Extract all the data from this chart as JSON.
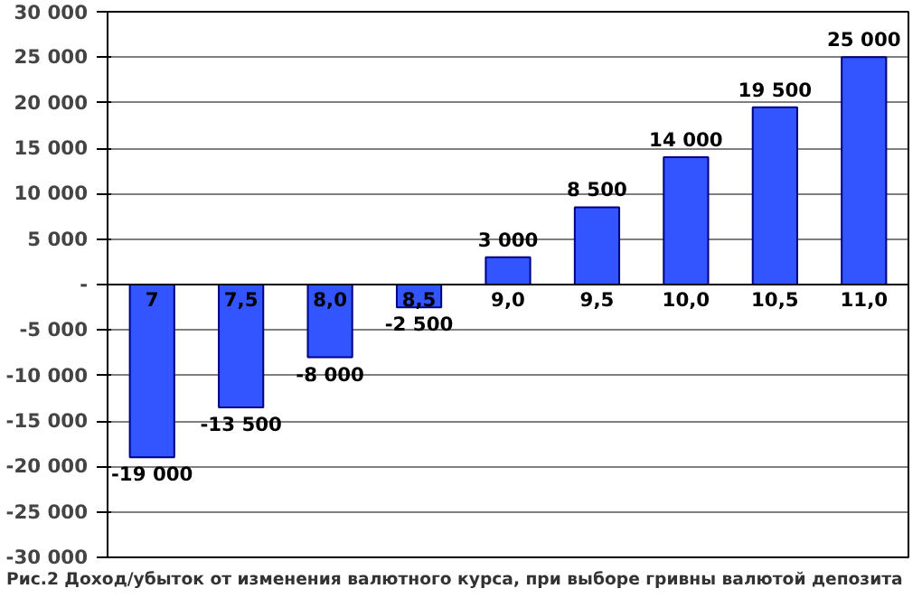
{
  "chart_data": {
    "type": "bar",
    "title": "Рис.2 Доход/убыток от изменения валютного курса, при выборе гривны валютой депозита",
    "categories": [
      "7",
      "7,5",
      "8,0",
      "8,5",
      "9,0",
      "9,5",
      "10,0",
      "10,5",
      "11,0"
    ],
    "values": [
      -19000,
      -13500,
      -8000,
      -2500,
      3000,
      8500,
      14000,
      19500,
      25000
    ],
    "value_labels": [
      "-19 000",
      "-13 500",
      "-8 000",
      "-2 500",
      "3 000",
      "8 500",
      "14 000",
      "19 500",
      "25 000"
    ],
    "color": "#3355ff",
    "ylim": [
      -30000,
      30000
    ],
    "yticks": [
      {
        "value": -30000,
        "label": "-30 000"
      },
      {
        "value": -25000,
        "label": "-25 000"
      },
      {
        "value": -20000,
        "label": "-20 000"
      },
      {
        "value": -15000,
        "label": "-15 000"
      },
      {
        "value": -10000,
        "label": "-10 000"
      },
      {
        "value": -5000,
        "label": "-5 000"
      },
      {
        "value": 0,
        "label": "-"
      },
      {
        "value": 5000,
        "label": "5 000"
      },
      {
        "value": 10000,
        "label": "10 000"
      },
      {
        "value": 15000,
        "label": "15 000"
      },
      {
        "value": 20000,
        "label": "20 000"
      },
      {
        "value": 25000,
        "label": "25 000"
      },
      {
        "value": 30000,
        "label": "30 000"
      }
    ],
    "grid": "y"
  }
}
